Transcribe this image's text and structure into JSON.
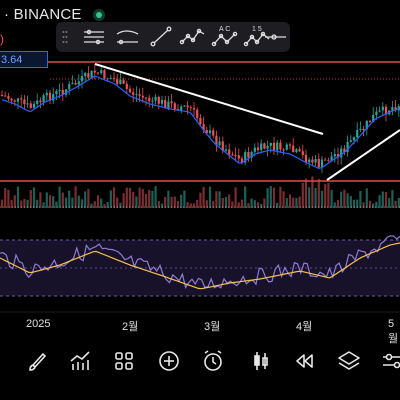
{
  "header": {
    "exchange": "· BINANCE",
    "paren": ")",
    "price_tag": "3.64"
  },
  "drawing_toolbar": {
    "tools": [
      {
        "name": "horizontal-lines-tool-icon",
        "label": ""
      },
      {
        "name": "channel-tool-icon",
        "label": ""
      },
      {
        "name": "trend-line-tool-icon",
        "label": ""
      },
      {
        "name": "polyline-tool-icon",
        "label": ""
      },
      {
        "name": "abcd-pattern-tool-icon",
        "label": "A C"
      },
      {
        "name": "elliott-wave-tool-icon",
        "label": "1 5"
      },
      {
        "name": "horizontal-ray-tool-icon",
        "label": ""
      }
    ]
  },
  "time_axis": {
    "labels": [
      "2025",
      "2월",
      "3월",
      "4월",
      "5월"
    ]
  },
  "bottom_toolbar": {
    "icons": [
      "brush-icon",
      "indicators-icon",
      "templates-icon",
      "add-icon",
      "alert-clock-icon",
      "candle-icon",
      "replay-icon",
      "layers-icon",
      "settings-sliders-icon"
    ]
  },
  "colors": {
    "up": "#26a69a",
    "down": "#ef5350",
    "ma": "#2962ff",
    "hline": "#e5484d",
    "rsi": "#8f7bd6",
    "rsi_ma": "#f5c14a",
    "rsi_band": "#2a1f4a"
  }
}
